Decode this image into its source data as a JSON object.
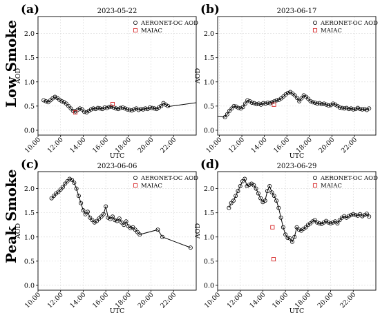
{
  "row_labels": [
    "Low Smoke",
    "Peak Smoke"
  ],
  "chart_data": [
    {
      "type": "scatter",
      "panel": "(a)",
      "title": "2023-05-22",
      "xlabel": "UTC",
      "ylabel": "AOD",
      "xlim": [
        10.0,
        24.0
      ],
      "ylim": [
        -0.1,
        2.35
      ],
      "x_ticks": [
        10,
        12,
        14,
        16,
        18,
        20,
        22
      ],
      "x_tick_labels": [
        "10:00",
        "12:00",
        "14:00",
        "16:00",
        "18:00",
        "20:00",
        "22:00"
      ],
      "y_ticks": [
        0.0,
        0.5,
        1.0,
        1.5,
        2.0
      ],
      "y_tick_labels": [
        "0.0",
        "0.5",
        "1.0",
        "1.5",
        "2.0"
      ],
      "grid": true,
      "legend_position": "top-right",
      "series": [
        {
          "name": "AERONET-OC AOD",
          "marker": "circle",
          "color": "#000000",
          "x": [
            10.5,
            10.7,
            10.9,
            11.1,
            11.3,
            11.5,
            11.7,
            11.9,
            12.1,
            12.3,
            12.5,
            12.7,
            12.9,
            13.1,
            13.3,
            13.5,
            13.7,
            13.9,
            14.1,
            14.3,
            14.5,
            14.7,
            14.9,
            15.1,
            15.3,
            15.5,
            15.7,
            15.9,
            16.1,
            16.3,
            16.5,
            16.7,
            16.9,
            17.1,
            17.3,
            17.5,
            17.7,
            17.9,
            18.1,
            18.3,
            18.5,
            18.7,
            18.9,
            19.1,
            19.3,
            19.5,
            19.7,
            19.9,
            20.1,
            20.3,
            20.5,
            20.7,
            20.9,
            21.1,
            21.3,
            21.5
          ],
          "y": [
            0.62,
            0.6,
            0.58,
            0.62,
            0.66,
            0.69,
            0.67,
            0.63,
            0.6,
            0.58,
            0.55,
            0.5,
            0.45,
            0.4,
            0.39,
            0.42,
            0.45,
            0.43,
            0.38,
            0.37,
            0.4,
            0.43,
            0.45,
            0.44,
            0.46,
            0.45,
            0.44,
            0.47,
            0.46,
            0.48,
            0.49,
            0.47,
            0.45,
            0.44,
            0.46,
            0.47,
            0.45,
            0.43,
            0.42,
            0.41,
            0.43,
            0.45,
            0.42,
            0.44,
            0.43,
            0.45,
            0.44,
            0.47,
            0.46,
            0.45,
            0.44,
            0.47,
            0.5,
            0.56,
            0.53,
            0.5
          ]
        },
        {
          "name": "MAIAC",
          "marker": "square",
          "color": "#d62728",
          "x": [
            13.3,
            16.6
          ],
          "y": [
            0.37,
            0.54
          ]
        }
      ],
      "trend_line": {
        "x": [
          21.5,
          24.0
        ],
        "y": [
          0.49,
          0.57
        ]
      }
    },
    {
      "type": "scatter",
      "panel": "(b)",
      "title": "2023-06-17",
      "xlabel": "UTC",
      "ylabel": "AOD",
      "xlim": [
        9.85,
        23.9
      ],
      "ylim": [
        -0.1,
        2.35
      ],
      "x_ticks": [
        10,
        12,
        14,
        16,
        18,
        20,
        22
      ],
      "x_tick_labels": [
        "10:00",
        "12:00",
        "14:00",
        "16:00",
        "18:00",
        "20:00",
        "22:00"
      ],
      "y_ticks": [
        0.0,
        0.5,
        1.0,
        1.5,
        2.0
      ],
      "y_tick_labels": [
        "0.0",
        "0.5",
        "1.0",
        "1.5",
        "2.0"
      ],
      "grid": true,
      "legend_position": "top-right",
      "series": [
        {
          "name": "AERONET-OC AOD",
          "marker": "circle",
          "color": "#000000",
          "x": [
            10.5,
            10.7,
            10.9,
            11.1,
            11.3,
            11.5,
            11.7,
            11.9,
            12.1,
            12.3,
            12.5,
            12.7,
            12.9,
            13.1,
            13.3,
            13.5,
            13.7,
            13.9,
            14.1,
            14.3,
            14.5,
            14.7,
            14.9,
            15.1,
            15.3,
            15.5,
            15.7,
            15.9,
            16.1,
            16.3,
            16.5,
            16.7,
            16.9,
            17.1,
            17.3,
            17.5,
            17.7,
            17.9,
            18.1,
            18.3,
            18.5,
            18.7,
            18.9,
            19.1,
            19.3,
            19.5,
            19.7,
            19.9,
            20.1,
            20.3,
            20.5,
            20.7,
            20.9,
            21.1,
            21.3,
            21.5,
            21.7,
            21.9,
            22.1,
            22.3,
            22.5,
            22.7,
            22.9,
            23.1,
            23.3
          ],
          "y": [
            0.27,
            0.33,
            0.4,
            0.45,
            0.5,
            0.49,
            0.46,
            0.45,
            0.48,
            0.55,
            0.62,
            0.6,
            0.57,
            0.56,
            0.54,
            0.55,
            0.53,
            0.56,
            0.55,
            0.57,
            0.56,
            0.58,
            0.6,
            0.62,
            0.63,
            0.66,
            0.7,
            0.74,
            0.77,
            0.79,
            0.76,
            0.72,
            0.67,
            0.6,
            0.66,
            0.72,
            0.69,
            0.65,
            0.6,
            0.58,
            0.57,
            0.55,
            0.56,
            0.54,
            0.55,
            0.53,
            0.51,
            0.52,
            0.55,
            0.53,
            0.5,
            0.47,
            0.46,
            0.45,
            0.46,
            0.44,
            0.45,
            0.43,
            0.44,
            0.46,
            0.44,
            0.43,
            0.44,
            0.42,
            0.45
          ]
        },
        {
          "name": "MAIAC",
          "marker": "square",
          "color": "#d62728",
          "x": [
            14.85
          ],
          "y": [
            0.53
          ]
        }
      ],
      "trend_line": {
        "x": [
          9.85,
          10.5
        ],
        "y": [
          0.29,
          0.27
        ]
      }
    },
    {
      "type": "scatter",
      "panel": "(c)",
      "title": "2023-06-06",
      "xlabel": "UTC",
      "ylabel": "AOD",
      "xlim": [
        10.0,
        24.0
      ],
      "ylim": [
        -0.1,
        2.35
      ],
      "x_ticks": [
        10,
        12,
        14,
        16,
        18,
        20,
        22
      ],
      "x_tick_labels": [
        "10:00",
        "12:00",
        "14:00",
        "16:00",
        "18:00",
        "20:00",
        "22:00"
      ],
      "y_ticks": [
        0.0,
        0.5,
        1.0,
        1.5,
        2.0
      ],
      "y_tick_labels": [
        "0.0",
        "0.5",
        "1.0",
        "1.5",
        "2.0"
      ],
      "grid": true,
      "legend_position": "top-right",
      "series": [
        {
          "name": "AERONET-OC AOD",
          "marker": "circle",
          "color": "#000000",
          "x": [
            11.2,
            11.4,
            11.6,
            11.8,
            12.0,
            12.2,
            12.4,
            12.6,
            12.8,
            13.0,
            13.2,
            13.4,
            13.6,
            13.8,
            14.0,
            14.2,
            14.4,
            14.6,
            14.8,
            15.0,
            15.2,
            15.4,
            15.6,
            15.8,
            16.0,
            16.2,
            16.4,
            16.6,
            16.8,
            17.0,
            17.2,
            17.4,
            17.6,
            17.8,
            18.0,
            18.2,
            18.4,
            18.6,
            18.8,
            19.0,
            20.6,
            21.0,
            23.5
          ],
          "y": [
            1.8,
            1.85,
            1.9,
            1.93,
            1.98,
            2.03,
            2.1,
            2.15,
            2.2,
            2.18,
            2.12,
            2.0,
            1.85,
            1.7,
            1.55,
            1.47,
            1.52,
            1.4,
            1.35,
            1.3,
            1.33,
            1.38,
            1.42,
            1.47,
            1.63,
            1.4,
            1.37,
            1.42,
            1.35,
            1.33,
            1.38,
            1.3,
            1.25,
            1.32,
            1.22,
            1.18,
            1.2,
            1.15,
            1.1,
            1.05,
            1.15,
            1.0,
            0.78
          ]
        },
        {
          "name": "MAIAC",
          "marker": "square",
          "color": "#d62728",
          "x": [],
          "y": []
        }
      ],
      "trend_line": {
        "x": [],
        "y": []
      }
    },
    {
      "type": "scatter",
      "panel": "(d)",
      "title": "2023-06-29",
      "xlabel": "UTC",
      "ylabel": "AOD",
      "xlim": [
        10.0,
        24.0
      ],
      "ylim": [
        -0.1,
        2.35
      ],
      "x_ticks": [
        10,
        12,
        14,
        16,
        18,
        20,
        22
      ],
      "x_tick_labels": [
        "10:00",
        "12:00",
        "14:00",
        "16:00",
        "18:00",
        "20:00",
        "22:00"
      ],
      "y_ticks": [
        0.0,
        0.5,
        1.0,
        1.5,
        2.0
      ],
      "y_tick_labels": [
        "0.0",
        "0.5",
        "1.0",
        "1.5",
        "2.0"
      ],
      "grid": true,
      "legend_position": "top-right",
      "series": [
        {
          "name": "AERONET-OC AOD",
          "marker": "circle",
          "color": "#000000",
          "x": [
            11.0,
            11.2,
            11.4,
            11.6,
            11.8,
            12.0,
            12.2,
            12.4,
            12.6,
            12.8,
            13.0,
            13.2,
            13.4,
            13.6,
            13.8,
            14.0,
            14.2,
            14.4,
            14.6,
            14.8,
            15.0,
            15.2,
            15.4,
            15.6,
            15.8,
            16.0,
            16.2,
            16.4,
            16.6,
            16.8,
            17.0,
            17.2,
            17.4,
            17.6,
            17.8,
            18.0,
            18.2,
            18.4,
            18.6,
            18.8,
            19.0,
            19.2,
            19.4,
            19.6,
            19.8,
            20.0,
            20.2,
            20.4,
            20.6,
            20.8,
            21.0,
            21.2,
            21.4,
            21.6,
            21.8,
            22.0,
            22.2,
            22.4,
            22.6,
            22.8,
            23.0,
            23.2,
            23.4
          ],
          "y": [
            1.6,
            1.7,
            1.75,
            1.85,
            1.95,
            2.05,
            2.15,
            2.2,
            2.05,
            2.08,
            2.1,
            2.07,
            2.0,
            1.9,
            1.8,
            1.72,
            1.75,
            1.95,
            2.05,
            1.92,
            1.85,
            1.75,
            1.6,
            1.4,
            1.2,
            1.05,
            0.98,
            0.97,
            0.9,
            1.0,
            1.2,
            1.15,
            1.13,
            1.17,
            1.2,
            1.25,
            1.28,
            1.32,
            1.35,
            1.3,
            1.28,
            1.27,
            1.3,
            1.33,
            1.3,
            1.28,
            1.3,
            1.32,
            1.28,
            1.35,
            1.4,
            1.43,
            1.4,
            1.43,
            1.45,
            1.47,
            1.45,
            1.44,
            1.47,
            1.43,
            1.45,
            1.48,
            1.42
          ]
        },
        {
          "name": "MAIAC",
          "marker": "square",
          "color": "#d62728",
          "x": [
            14.85,
            14.95
          ],
          "y": [
            1.2,
            0.54
          ]
        }
      ],
      "trend_line": {
        "x": [],
        "y": []
      }
    }
  ]
}
